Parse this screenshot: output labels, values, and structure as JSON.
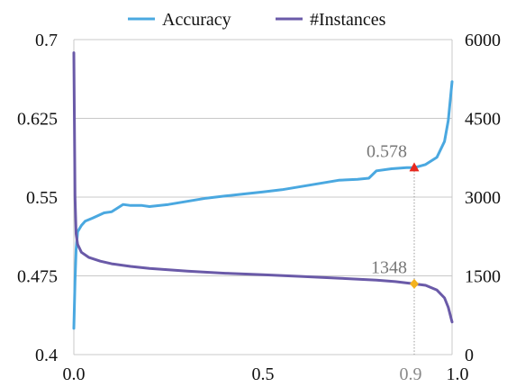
{
  "chart_data": {
    "type": "line",
    "legend": {
      "placement": "top-center",
      "items": [
        {
          "label": "Accuracy",
          "color": "#4aa8e0"
        },
        {
          "label": "#Instances",
          "color": "#6a5aa8"
        }
      ]
    },
    "x_axis": {
      "range": [
        0,
        1
      ],
      "ticks": [
        "0.0",
        "0.5",
        "0.9",
        "1.0"
      ],
      "tick_values": [
        0,
        0.5,
        0.9,
        1.0
      ]
    },
    "y_left": {
      "range": [
        0.4,
        0.7
      ],
      "ticks": [
        "0.4",
        "0.475",
        "0.55",
        "0.625",
        "0.7"
      ],
      "tick_values": [
        0.4,
        0.475,
        0.55,
        0.625,
        0.7
      ]
    },
    "y_right": {
      "range": [
        0,
        6000
      ],
      "ticks": [
        "0",
        "1500",
        "3000",
        "4500",
        "6000"
      ],
      "tick_values": [
        0,
        1500,
        3000,
        4500,
        6000
      ]
    },
    "grid": true,
    "series": [
      {
        "name": "Accuracy",
        "axis": "left",
        "color": "#4aa8e0",
        "points": [
          [
            0.0,
            0.425
          ],
          [
            0.003,
            0.47
          ],
          [
            0.006,
            0.5
          ],
          [
            0.01,
            0.517
          ],
          [
            0.02,
            0.523
          ],
          [
            0.03,
            0.527
          ],
          [
            0.05,
            0.53
          ],
          [
            0.08,
            0.535
          ],
          [
            0.1,
            0.536
          ],
          [
            0.13,
            0.543
          ],
          [
            0.15,
            0.542
          ],
          [
            0.18,
            0.542
          ],
          [
            0.2,
            0.541
          ],
          [
            0.25,
            0.543
          ],
          [
            0.3,
            0.546
          ],
          [
            0.35,
            0.549
          ],
          [
            0.4,
            0.551
          ],
          [
            0.45,
            0.553
          ],
          [
            0.5,
            0.555
          ],
          [
            0.55,
            0.557
          ],
          [
            0.6,
            0.56
          ],
          [
            0.65,
            0.563
          ],
          [
            0.7,
            0.566
          ],
          [
            0.75,
            0.567
          ],
          [
            0.78,
            0.568
          ],
          [
            0.8,
            0.575
          ],
          [
            0.84,
            0.577
          ],
          [
            0.88,
            0.578
          ],
          [
            0.9,
            0.578
          ],
          [
            0.93,
            0.581
          ],
          [
            0.96,
            0.588
          ],
          [
            0.98,
            0.603
          ],
          [
            0.99,
            0.623
          ],
          [
            1.0,
            0.66
          ]
        ]
      },
      {
        "name": "#Instances",
        "axis": "right",
        "color": "#6a5aa8",
        "points": [
          [
            0.0,
            5750
          ],
          [
            0.003,
            3000
          ],
          [
            0.006,
            2300
          ],
          [
            0.01,
            2100
          ],
          [
            0.02,
            1950
          ],
          [
            0.04,
            1850
          ],
          [
            0.07,
            1780
          ],
          [
            0.1,
            1730
          ],
          [
            0.15,
            1680
          ],
          [
            0.2,
            1640
          ],
          [
            0.3,
            1590
          ],
          [
            0.4,
            1550
          ],
          [
            0.5,
            1520
          ],
          [
            0.6,
            1490
          ],
          [
            0.7,
            1455
          ],
          [
            0.8,
            1420
          ],
          [
            0.85,
            1390
          ],
          [
            0.9,
            1348
          ],
          [
            0.93,
            1320
          ],
          [
            0.96,
            1230
          ],
          [
            0.98,
            1080
          ],
          [
            0.99,
            900
          ],
          [
            1.0,
            620
          ]
        ]
      }
    ],
    "annotations": [
      {
        "x": 0.9,
        "y": 0.578,
        "axis": "left",
        "label": "0.578",
        "marker": "triangle",
        "color": "#e8281e"
      },
      {
        "x": 0.9,
        "y": 1348,
        "axis": "right",
        "label": "1348",
        "marker": "diamond",
        "color": "#f4b21e"
      }
    ]
  }
}
